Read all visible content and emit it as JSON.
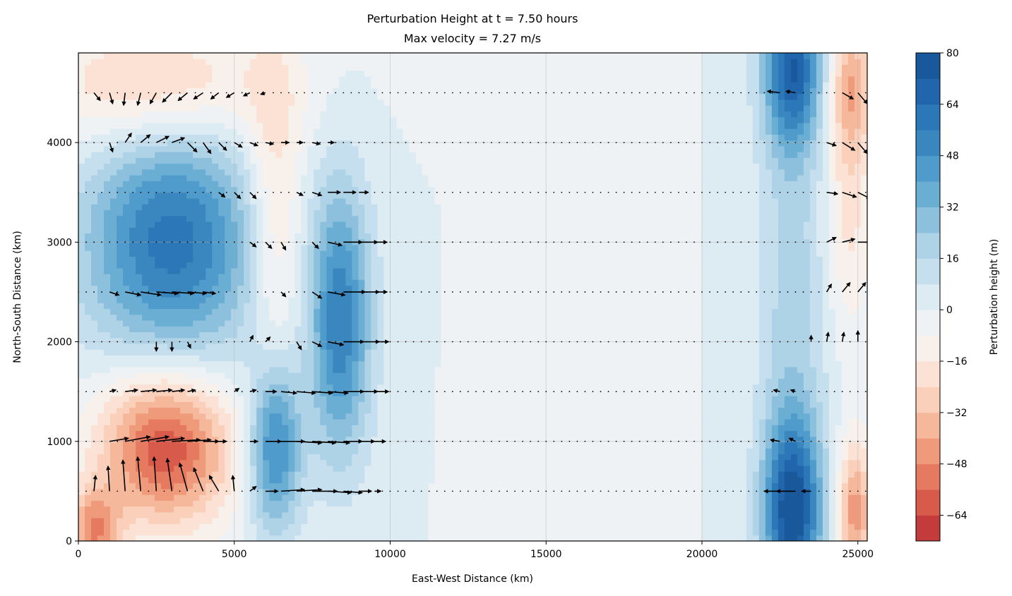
{
  "chart_data": {
    "type": "heatmap",
    "subtype": "filled contour with quiver overlay",
    "title_line1": "Perturbation Height at t = 7.50 hours",
    "title_line2": "Max velocity = 7.27 m/s",
    "xlabel": "East-West Distance (km)",
    "ylabel": "North-South Distance (km)",
    "xlim": [
      0,
      25300
    ],
    "ylim": [
      0,
      4900
    ],
    "x_ticks": [
      0,
      5000,
      10000,
      15000,
      20000,
      25000
    ],
    "x_tick_labels": [
      "0",
      "5000",
      "10000",
      "15000",
      "20000",
      "25000"
    ],
    "y_ticks": [
      0,
      1000,
      2000,
      3000,
      4000
    ],
    "y_tick_labels": [
      "0",
      "1000",
      "2000",
      "3000",
      "4000"
    ],
    "grid": true,
    "colorbar": {
      "label": "Perturbation height (m)",
      "range": [
        -72,
        80
      ],
      "levels": [
        -72,
        -64,
        -56,
        -48,
        -40,
        -32,
        -24,
        -16,
        -8,
        0,
        8,
        16,
        24,
        32,
        40,
        48,
        56,
        64,
        72,
        80
      ],
      "ticks": [
        -64,
        -48,
        -32,
        -16,
        0,
        16,
        32,
        48,
        64,
        80
      ],
      "tick_labels": [
        "−64",
        "−48",
        "−32",
        "−16",
        "0",
        "16",
        "32",
        "48",
        "64",
        "80"
      ],
      "colors": [
        "#c43b3b",
        "#d85a4a",
        "#e57a60",
        "#f09a7c",
        "#f6b89b",
        "#fad0bb",
        "#fbe2d5",
        "#f8f0eb",
        "#eef2f5",
        "#ddebf3",
        "#c6dfee",
        "#aed3e7",
        "#8cc0dd",
        "#6aaed4",
        "#4f9bcb",
        "#3a87c0",
        "#2c77b7",
        "#2166ac",
        "#19599b"
      ]
    },
    "fields": [
      {
        "name": "positive anomaly",
        "x": 3000,
        "y": 3000,
        "sx": 2000,
        "sy": 850,
        "height": 60
      },
      {
        "name": "positive anomaly",
        "x": 8400,
        "y": 2200,
        "sx": 700,
        "sy": 950,
        "height": 55
      },
      {
        "name": "positive anomaly",
        "x": 6300,
        "y": 950,
        "sx": 600,
        "sy": 600,
        "height": 55
      },
      {
        "name": "positive anomaly",
        "x": 22900,
        "y": 300,
        "sx": 650,
        "sy": 650,
        "height": 75
      },
      {
        "name": "positive anomaly",
        "x": 22900,
        "y": 4750,
        "sx": 650,
        "sy": 550,
        "height": 65
      },
      {
        "name": "positive anomaly",
        "x": 22900,
        "y": 2500,
        "sx": 800,
        "sy": 1700,
        "height": 20
      },
      {
        "name": "negative anomaly",
        "x": 2800,
        "y": 950,
        "sx": 1500,
        "sy": 550,
        "height": -64
      },
      {
        "name": "negative anomaly",
        "x": 2500,
        "y": 4550,
        "sx": 2600,
        "sy": 450,
        "height": -30
      },
      {
        "name": "negative anomaly",
        "x": 6300,
        "y": 3300,
        "sx": 650,
        "sy": 1200,
        "height": -25
      },
      {
        "name": "negative anomaly",
        "x": 500,
        "y": 100,
        "sx": 600,
        "sy": 300,
        "height": -45
      },
      {
        "name": "negative anomaly",
        "x": 24900,
        "y": 300,
        "sx": 400,
        "sy": 500,
        "height": -45
      },
      {
        "name": "negative anomaly",
        "x": 24800,
        "y": 4600,
        "sx": 500,
        "sy": 500,
        "height": -35
      },
      {
        "name": "negative anomaly",
        "x": 24700,
        "y": 3400,
        "sx": 500,
        "sy": 900,
        "height": -20
      },
      {
        "name": "negative anomaly",
        "x": 16000,
        "y": 3000,
        "sx": 1200,
        "sy": 5000,
        "height": -5
      }
    ],
    "quiver": {
      "rows_y": [
        500,
        1000,
        1500,
        2000,
        2500,
        3000,
        3500,
        4000,
        4500
      ],
      "x_start": 0,
      "x_step": 250,
      "x_end": 25250,
      "vectors": [
        {
          "x": 500,
          "y": 500,
          "u": 0.1,
          "v": 1.0
        },
        {
          "x": 1000,
          "y": 500,
          "u": -0.1,
          "v": 1.6
        },
        {
          "x": 1500,
          "y": 500,
          "u": -0.15,
          "v": 2.0
        },
        {
          "x": 2000,
          "y": 500,
          "u": -0.2,
          "v": 2.2
        },
        {
          "x": 2500,
          "y": 500,
          "u": -0.15,
          "v": 2.2
        },
        {
          "x": 3000,
          "y": 500,
          "u": -0.3,
          "v": 2.1
        },
        {
          "x": 3500,
          "y": 500,
          "u": -0.5,
          "v": 1.8
        },
        {
          "x": 4000,
          "y": 500,
          "u": -0.6,
          "v": 1.5
        },
        {
          "x": 4500,
          "y": 500,
          "u": -0.6,
          "v": 1.0
        },
        {
          "x": 5000,
          "y": 500,
          "u": -0.1,
          "v": 1.0
        },
        {
          "x": 5500,
          "y": 500,
          "u": 0.4,
          "v": 0.3
        },
        {
          "x": 6000,
          "y": 500,
          "u": 0.8,
          "v": 0.0
        },
        {
          "x": 6500,
          "y": 500,
          "u": 1.5,
          "v": 0.1
        },
        {
          "x": 7000,
          "y": 500,
          "u": 1.6,
          "v": 0.1
        },
        {
          "x": 7500,
          "y": 500,
          "u": 1.6,
          "v": 0.0
        },
        {
          "x": 8000,
          "y": 500,
          "u": 1.5,
          "v": -0.1
        },
        {
          "x": 8500,
          "y": 500,
          "u": 1.2,
          "v": -0.1
        },
        {
          "x": 9000,
          "y": 500,
          "u": 0.8,
          "v": 0.0
        },
        {
          "x": 9500,
          "y": 500,
          "u": 0.4,
          "v": 0.0
        },
        {
          "x": 1000,
          "y": 1000,
          "u": 1.2,
          "v": 0.2
        },
        {
          "x": 1500,
          "y": 1000,
          "u": 1.6,
          "v": 0.3
        },
        {
          "x": 2000,
          "y": 1000,
          "u": 1.8,
          "v": 0.3
        },
        {
          "x": 2500,
          "y": 1000,
          "u": 1.8,
          "v": 0.2
        },
        {
          "x": 3000,
          "y": 1000,
          "u": 1.8,
          "v": 0.1
        },
        {
          "x": 3500,
          "y": 1000,
          "u": 1.5,
          "v": 0.1
        },
        {
          "x": 4000,
          "y": 1000,
          "u": 1.0,
          "v": 0.0
        },
        {
          "x": 4500,
          "y": 1000,
          "u": 0.5,
          "v": 0.0
        },
        {
          "x": 5500,
          "y": 1000,
          "u": 0.5,
          "v": 0.0
        },
        {
          "x": 6000,
          "y": 1000,
          "u": 1.0,
          "v": 0.0
        },
        {
          "x": 6500,
          "y": 1000,
          "u": 1.5,
          "v": 0.0
        },
        {
          "x": 7000,
          "y": 1000,
          "u": 1.6,
          "v": -0.1
        },
        {
          "x": 7500,
          "y": 1000,
          "u": 1.5,
          "v": -0.1
        },
        {
          "x": 8000,
          "y": 1000,
          "u": 1.4,
          "v": -0.1
        },
        {
          "x": 8500,
          "y": 1000,
          "u": 1.2,
          "v": 0.0
        },
        {
          "x": 9000,
          "y": 1000,
          "u": 1.0,
          "v": 0.0
        },
        {
          "x": 9500,
          "y": 1000,
          "u": 0.7,
          "v": 0.0
        },
        {
          "x": 1000,
          "y": 1500,
          "u": 0.4,
          "v": 0.1
        },
        {
          "x": 1500,
          "y": 1500,
          "u": 0.8,
          "v": 0.1
        },
        {
          "x": 2000,
          "y": 1500,
          "u": 1.0,
          "v": 0.1
        },
        {
          "x": 2500,
          "y": 1500,
          "u": 1.0,
          "v": 0.1
        },
        {
          "x": 3000,
          "y": 1500,
          "u": 0.8,
          "v": 0.1
        },
        {
          "x": 3500,
          "y": 1500,
          "u": 0.5,
          "v": 0.1
        },
        {
          "x": 5000,
          "y": 1500,
          "u": 0.3,
          "v": 0.2
        },
        {
          "x": 5500,
          "y": 1500,
          "u": 0.4,
          "v": 0.1
        },
        {
          "x": 6000,
          "y": 1500,
          "u": 0.7,
          "v": 0.0
        },
        {
          "x": 6500,
          "y": 1500,
          "u": 1.0,
          "v": -0.1
        },
        {
          "x": 7000,
          "y": 1500,
          "u": 1.2,
          "v": -0.1
        },
        {
          "x": 7500,
          "y": 1500,
          "u": 1.3,
          "v": -0.1
        },
        {
          "x": 8000,
          "y": 1500,
          "u": 1.3,
          "v": -0.1
        },
        {
          "x": 8500,
          "y": 1500,
          "u": 1.3,
          "v": 0.0
        },
        {
          "x": 9000,
          "y": 1500,
          "u": 1.2,
          "v": 0.0
        },
        {
          "x": 9500,
          "y": 1500,
          "u": 0.9,
          "v": 0.0
        },
        {
          "x": 2500,
          "y": 2000,
          "u": 0.0,
          "v": -0.6
        },
        {
          "x": 3000,
          "y": 2000,
          "u": 0.0,
          "v": -0.6
        },
        {
          "x": 3500,
          "y": 2000,
          "u": 0.2,
          "v": -0.4
        },
        {
          "x": 5500,
          "y": 2000,
          "u": 0.2,
          "v": 0.4
        },
        {
          "x": 6000,
          "y": 2000,
          "u": 0.3,
          "v": 0.3
        },
        {
          "x": 7000,
          "y": 2000,
          "u": 0.3,
          "v": -0.5
        },
        {
          "x": 7500,
          "y": 2000,
          "u": 0.6,
          "v": -0.3
        },
        {
          "x": 8000,
          "y": 2000,
          "u": 1.0,
          "v": -0.2
        },
        {
          "x": 8500,
          "y": 2000,
          "u": 1.3,
          "v": 0.0
        },
        {
          "x": 9000,
          "y": 2000,
          "u": 1.3,
          "v": 0.0
        },
        {
          "x": 9500,
          "y": 2000,
          "u": 0.9,
          "v": 0.0
        },
        {
          "x": 1000,
          "y": 2500,
          "u": 0.6,
          "v": -0.2
        },
        {
          "x": 1500,
          "y": 2500,
          "u": 1.0,
          "v": -0.2
        },
        {
          "x": 2000,
          "y": 2500,
          "u": 1.3,
          "v": -0.2
        },
        {
          "x": 2500,
          "y": 2500,
          "u": 1.4,
          "v": -0.1
        },
        {
          "x": 3000,
          "y": 2500,
          "u": 1.4,
          "v": -0.1
        },
        {
          "x": 3500,
          "y": 2500,
          "u": 1.2,
          "v": -0.1
        },
        {
          "x": 4000,
          "y": 2500,
          "u": 0.8,
          "v": -0.1
        },
        {
          "x": 6500,
          "y": 2500,
          "u": 0.3,
          "v": -0.3
        },
        {
          "x": 7500,
          "y": 2500,
          "u": 0.6,
          "v": -0.4
        },
        {
          "x": 8000,
          "y": 2500,
          "u": 1.1,
          "v": -0.2
        },
        {
          "x": 8500,
          "y": 2500,
          "u": 1.4,
          "v": 0.0
        },
        {
          "x": 9000,
          "y": 2500,
          "u": 1.3,
          "v": 0.0
        },
        {
          "x": 9500,
          "y": 2500,
          "u": 0.8,
          "v": 0.0
        },
        {
          "x": 5500,
          "y": 3000,
          "u": 0.4,
          "v": -0.3
        },
        {
          "x": 6000,
          "y": 3000,
          "u": 0.4,
          "v": -0.4
        },
        {
          "x": 6500,
          "y": 3000,
          "u": 0.3,
          "v": -0.5
        },
        {
          "x": 7500,
          "y": 3000,
          "u": 0.4,
          "v": -0.4
        },
        {
          "x": 8000,
          "y": 3000,
          "u": 0.9,
          "v": -0.2
        },
        {
          "x": 8500,
          "y": 3000,
          "u": 1.2,
          "v": 0.0
        },
        {
          "x": 9000,
          "y": 3000,
          "u": 1.2,
          "v": 0.0
        },
        {
          "x": 9500,
          "y": 3000,
          "u": 0.8,
          "v": 0.0
        },
        {
          "x": 4500,
          "y": 3500,
          "u": 0.4,
          "v": -0.3
        },
        {
          "x": 5000,
          "y": 3500,
          "u": 0.4,
          "v": -0.4
        },
        {
          "x": 5500,
          "y": 3500,
          "u": 0.4,
          "v": -0.4
        },
        {
          "x": 7000,
          "y": 3500,
          "u": 0.4,
          "v": -0.2
        },
        {
          "x": 7500,
          "y": 3500,
          "u": 0.6,
          "v": -0.2
        },
        {
          "x": 8000,
          "y": 3500,
          "u": 0.8,
          "v": 0.0
        },
        {
          "x": 8500,
          "y": 3500,
          "u": 0.8,
          "v": 0.0
        },
        {
          "x": 9000,
          "y": 3500,
          "u": 0.6,
          "v": 0.0
        },
        {
          "x": 1000,
          "y": 4000,
          "u": 0.2,
          "v": -0.6
        },
        {
          "x": 1500,
          "y": 4000,
          "u": 0.4,
          "v": 0.6
        },
        {
          "x": 2000,
          "y": 4000,
          "u": 0.6,
          "v": 0.5
        },
        {
          "x": 2500,
          "y": 4000,
          "u": 0.8,
          "v": 0.4
        },
        {
          "x": 3000,
          "y": 4000,
          "u": 0.8,
          "v": 0.3
        },
        {
          "x": 3500,
          "y": 4000,
          "u": 0.6,
          "v": -0.6
        },
        {
          "x": 4000,
          "y": 4000,
          "u": 0.5,
          "v": -0.7
        },
        {
          "x": 4500,
          "y": 4000,
          "u": 0.5,
          "v": -0.5
        },
        {
          "x": 5000,
          "y": 4000,
          "u": 0.5,
          "v": -0.3
        },
        {
          "x": 5500,
          "y": 4000,
          "u": 0.5,
          "v": -0.2
        },
        {
          "x": 6000,
          "y": 4000,
          "u": 0.5,
          "v": -0.1
        },
        {
          "x": 6500,
          "y": 4000,
          "u": 0.5,
          "v": 0.0
        },
        {
          "x": 7000,
          "y": 4000,
          "u": 0.4,
          "v": 0.0
        },
        {
          "x": 7500,
          "y": 4000,
          "u": 0.5,
          "v": -0.1
        },
        {
          "x": 8000,
          "y": 4000,
          "u": 0.4,
          "v": 0.0
        },
        {
          "x": 500,
          "y": 4500,
          "u": 0.4,
          "v": -0.5
        },
        {
          "x": 1000,
          "y": 4500,
          "u": 0.2,
          "v": -0.7
        },
        {
          "x": 1500,
          "y": 4500,
          "u": -0.1,
          "v": -0.8
        },
        {
          "x": 2000,
          "y": 4500,
          "u": -0.2,
          "v": -0.8
        },
        {
          "x": 2500,
          "y": 4500,
          "u": -0.4,
          "v": -0.7
        },
        {
          "x": 3000,
          "y": 4500,
          "u": -0.6,
          "v": -0.6
        },
        {
          "x": 3500,
          "y": 4500,
          "u": -0.6,
          "v": -0.5
        },
        {
          "x": 4000,
          "y": 4500,
          "u": -0.6,
          "v": -0.4
        },
        {
          "x": 4500,
          "y": 4500,
          "u": -0.5,
          "v": -0.4
        },
        {
          "x": 5000,
          "y": 4500,
          "u": -0.5,
          "v": -0.3
        },
        {
          "x": 5500,
          "y": 4500,
          "u": -0.4,
          "v": -0.2
        },
        {
          "x": 6000,
          "y": 4500,
          "u": -0.3,
          "v": -0.1
        },
        {
          "x": 22500,
          "y": 500,
          "u": -1.0,
          "v": 0.0
        },
        {
          "x": 23000,
          "y": 500,
          "u": -1.2,
          "v": 0.0
        },
        {
          "x": 23500,
          "y": 500,
          "u": -0.6,
          "v": 0.0
        },
        {
          "x": 22500,
          "y": 1000,
          "u": -0.6,
          "v": 0.1
        },
        {
          "x": 23000,
          "y": 1000,
          "u": -0.4,
          "v": 0.2
        },
        {
          "x": 22500,
          "y": 1500,
          "u": -0.4,
          "v": 0.1
        },
        {
          "x": 23000,
          "y": 1500,
          "u": -0.3,
          "v": 0.1
        },
        {
          "x": 23500,
          "y": 2000,
          "u": 0.0,
          "v": 0.4
        },
        {
          "x": 24000,
          "y": 2000,
          "u": 0.1,
          "v": 0.6
        },
        {
          "x": 24500,
          "y": 2000,
          "u": 0.1,
          "v": 0.6
        },
        {
          "x": 25000,
          "y": 2000,
          "u": 0.0,
          "v": 0.7
        },
        {
          "x": 24000,
          "y": 2500,
          "u": 0.3,
          "v": 0.5
        },
        {
          "x": 24500,
          "y": 2500,
          "u": 0.5,
          "v": 0.6
        },
        {
          "x": 25000,
          "y": 2500,
          "u": 0.5,
          "v": 0.6
        },
        {
          "x": 24000,
          "y": 3000,
          "u": 0.6,
          "v": 0.3
        },
        {
          "x": 24500,
          "y": 3000,
          "u": 0.8,
          "v": 0.2
        },
        {
          "x": 25000,
          "y": 3000,
          "u": 0.9,
          "v": 0.0
        },
        {
          "x": 24000,
          "y": 3500,
          "u": 0.7,
          "v": -0.1
        },
        {
          "x": 24500,
          "y": 3500,
          "u": 0.9,
          "v": -0.3
        },
        {
          "x": 25000,
          "y": 3500,
          "u": 0.8,
          "v": -0.4
        },
        {
          "x": 24000,
          "y": 4000,
          "u": 0.6,
          "v": -0.2
        },
        {
          "x": 24500,
          "y": 4000,
          "u": 0.8,
          "v": -0.5
        },
        {
          "x": 25000,
          "y": 4000,
          "u": 0.6,
          "v": -0.7
        },
        {
          "x": 22500,
          "y": 4500,
          "u": -0.8,
          "v": 0.1
        },
        {
          "x": 23000,
          "y": 4500,
          "u": -0.6,
          "v": 0.1
        },
        {
          "x": 24500,
          "y": 4500,
          "u": 0.7,
          "v": -0.4
        },
        {
          "x": 25000,
          "y": 4500,
          "u": 0.6,
          "v": -0.7
        }
      ]
    }
  }
}
